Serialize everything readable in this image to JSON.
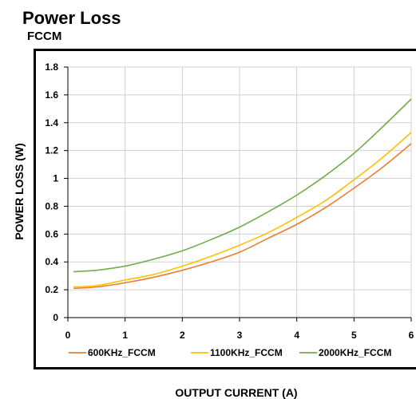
{
  "header": {
    "title": "Power Loss",
    "subtitle": "FCCM"
  },
  "chart_data": {
    "type": "line",
    "title": "Power Loss",
    "subtitle": "FCCM",
    "xlabel": "OUTPUT CURRENT (A)",
    "ylabel": "POWER LOSS (W)",
    "xlim": [
      0,
      6
    ],
    "ylim": [
      0,
      1.8
    ],
    "xticks": [
      0,
      1,
      2,
      3,
      4,
      5,
      6
    ],
    "yticks": [
      0,
      0.2,
      0.4,
      0.6,
      0.8,
      1,
      1.2,
      1.4,
      1.6,
      1.8
    ],
    "ytick_labels": [
      "0",
      "0.2",
      "0.4",
      "0.6",
      "0.8",
      "1",
      "1.2",
      "1.4",
      "1.6",
      "1.8"
    ],
    "grid": true,
    "legend_position": "bottom",
    "x": [
      0.1,
      0.5,
      1,
      1.5,
      2,
      2.5,
      3,
      3.5,
      4,
      4.5,
      5,
      5.5,
      6
    ],
    "series": [
      {
        "name": "600KHz_FCCM",
        "color": "#ED7D31",
        "values": [
          0.21,
          0.22,
          0.25,
          0.29,
          0.34,
          0.4,
          0.47,
          0.57,
          0.67,
          0.79,
          0.93,
          1.08,
          1.25
        ]
      },
      {
        "name": "1100KHz_FCCM",
        "color": "#FFC000",
        "values": [
          0.22,
          0.23,
          0.27,
          0.31,
          0.37,
          0.44,
          0.52,
          0.61,
          0.72,
          0.84,
          0.99,
          1.15,
          1.33
        ]
      },
      {
        "name": "2000KHz_FCCM",
        "color": "#70AD47",
        "values": [
          0.33,
          0.34,
          0.37,
          0.42,
          0.48,
          0.56,
          0.65,
          0.76,
          0.88,
          1.02,
          1.18,
          1.37,
          1.57
        ]
      }
    ]
  }
}
